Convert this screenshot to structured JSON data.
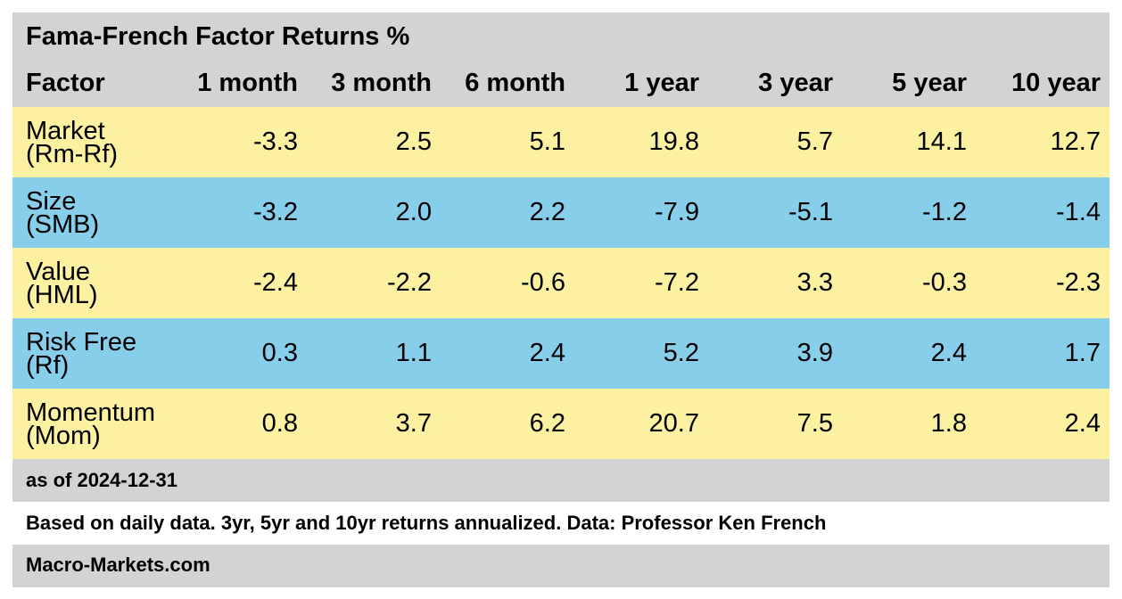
{
  "chart_data": {
    "type": "table",
    "title": "Fama-French Factor Returns %",
    "columns": [
      "Factor",
      "1 month",
      "3 month",
      "6 month",
      "1 year",
      "3 year",
      "5 year",
      "10 year"
    ],
    "rows": [
      {
        "factor": [
          "Market",
          "(Rm-Rf)"
        ],
        "values": [
          "-3.3",
          "2.5",
          "5.1",
          "19.8",
          "5.7",
          "14.1",
          "12.7"
        ],
        "color": "#fbf1a1"
      },
      {
        "factor": [
          "Size",
          "(SMB)"
        ],
        "values": [
          "-3.2",
          "2.0",
          "2.2",
          "-7.9",
          "-5.1",
          "-1.2",
          "-1.4"
        ],
        "color": "#87ceeb"
      },
      {
        "factor": [
          "Value",
          "(HML)"
        ],
        "values": [
          "-2.4",
          "-2.2",
          "-0.6",
          "-7.2",
          "3.3",
          "-0.3",
          "-2.3"
        ],
        "color": "#fbf1a1"
      },
      {
        "factor": [
          "Risk Free",
          "(Rf)"
        ],
        "values": [
          "0.3",
          "1.1",
          "2.4",
          "5.2",
          "3.9",
          "2.4",
          "1.7"
        ],
        "color": "#87ceeb"
      },
      {
        "factor": [
          "Momentum",
          "(Mom)"
        ],
        "values": [
          "0.8",
          "3.7",
          "6.2",
          "20.7",
          "7.5",
          "1.8",
          "2.4"
        ],
        "color": "#fbf1a1"
      }
    ],
    "as_of": "as of 2024-12-31",
    "note": "Based on daily data. 3yr, 5yr and 10yr returns annualized. Data: Professor Ken French",
    "source": "Macro-Markets.com"
  },
  "colors": {
    "header_gray": "#d3d3d3",
    "row_yellow": "#fbf1a1",
    "row_blue": "#87ceeb"
  }
}
